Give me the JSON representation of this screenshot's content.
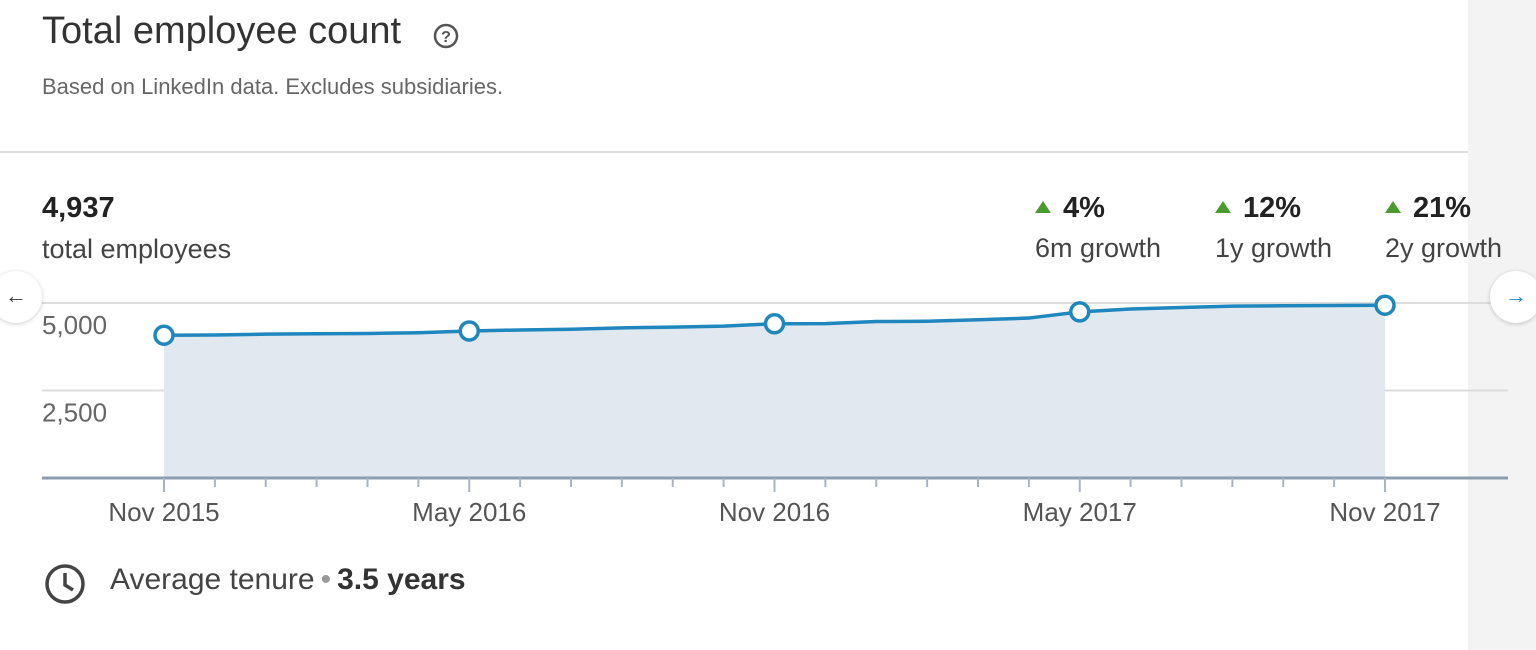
{
  "header": {
    "title": "Total employee count",
    "subtitle": "Based on LinkedIn data. Excludes subsidiaries."
  },
  "summary": {
    "total": "4,937",
    "total_label": "total employees",
    "growth": [
      {
        "value": "4%",
        "label": "6m growth"
      },
      {
        "value": "12%",
        "label": "1y growth"
      },
      {
        "value": "21%",
        "label": "2y growth"
      }
    ]
  },
  "chart_data": {
    "type": "area",
    "categories": [
      "Nov 2015",
      null,
      null,
      null,
      null,
      null,
      "May 2016",
      null,
      null,
      null,
      null,
      null,
      "Nov 2016",
      null,
      null,
      null,
      null,
      null,
      "May 2017",
      null,
      null,
      null,
      null,
      null,
      "Nov 2017"
    ],
    "values": [
      4080,
      4085,
      4110,
      4120,
      4130,
      4150,
      4200,
      4230,
      4250,
      4290,
      4310,
      4340,
      4408,
      4410,
      4470,
      4480,
      4520,
      4570,
      4747,
      4830,
      4870,
      4910,
      4920,
      4930,
      4937
    ],
    "color": "#1f87be",
    "fill": "#e1e8f0",
    "ylim": [
      0,
      5000
    ],
    "yticks": [
      {
        "value": 2500,
        "label": "2,500"
      },
      {
        "value": 5000,
        "label": "5,000"
      }
    ],
    "grid": true
  },
  "footer": {
    "label": "Average tenure",
    "value": "3.5 years"
  }
}
